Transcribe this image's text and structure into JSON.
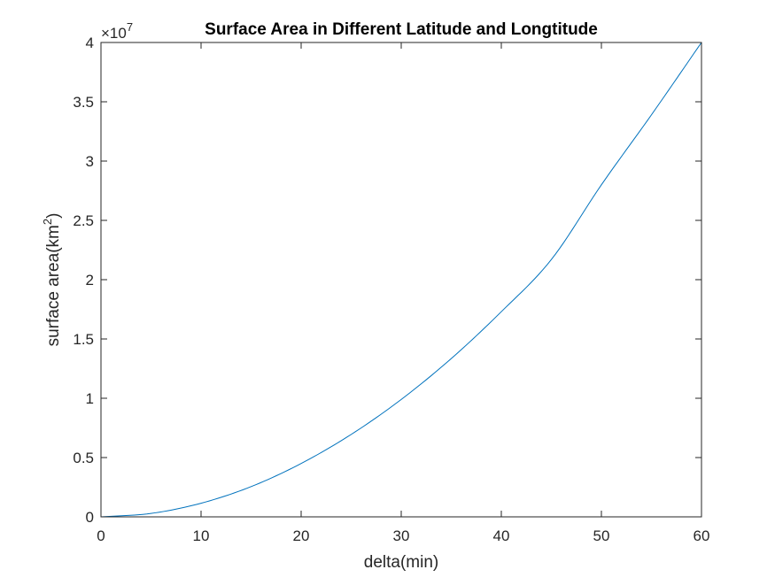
{
  "chart_data": {
    "type": "line",
    "title": "Surface Area in Different Latitude and Longtitude",
    "xlabel": "delta(min)",
    "ylabel": {
      "text": "surface area(km",
      "superscript": "2",
      "suffix": ")"
    },
    "xlim": [
      0,
      60
    ],
    "ylim": [
      0,
      40000000
    ],
    "x_ticks": [
      0,
      10,
      20,
      30,
      40,
      50,
      60
    ],
    "x_tick_labels": [
      "0",
      "10",
      "20",
      "30",
      "40",
      "50",
      "60"
    ],
    "y_ticks": [
      0,
      5000000,
      10000000,
      15000000,
      20000000,
      25000000,
      30000000,
      35000000,
      40000000
    ],
    "y_tick_labels": [
      "0",
      "0.5",
      "1",
      "1.5",
      "2",
      "2.5",
      "3",
      "3.5",
      "4"
    ],
    "y_exponent": {
      "base": "×10",
      "power": "7"
    },
    "grid": false,
    "series": [
      {
        "color": "#0072BD",
        "x": [
          0,
          5,
          10,
          15,
          20,
          25,
          30,
          35,
          40,
          45,
          50,
          55,
          60
        ],
        "y": [
          0,
          290000,
          1150000,
          2550000,
          4500000,
          6950000,
          9900000,
          13350000,
          17300000,
          21700000,
          28000000,
          33900000,
          40000000
        ]
      }
    ]
  }
}
